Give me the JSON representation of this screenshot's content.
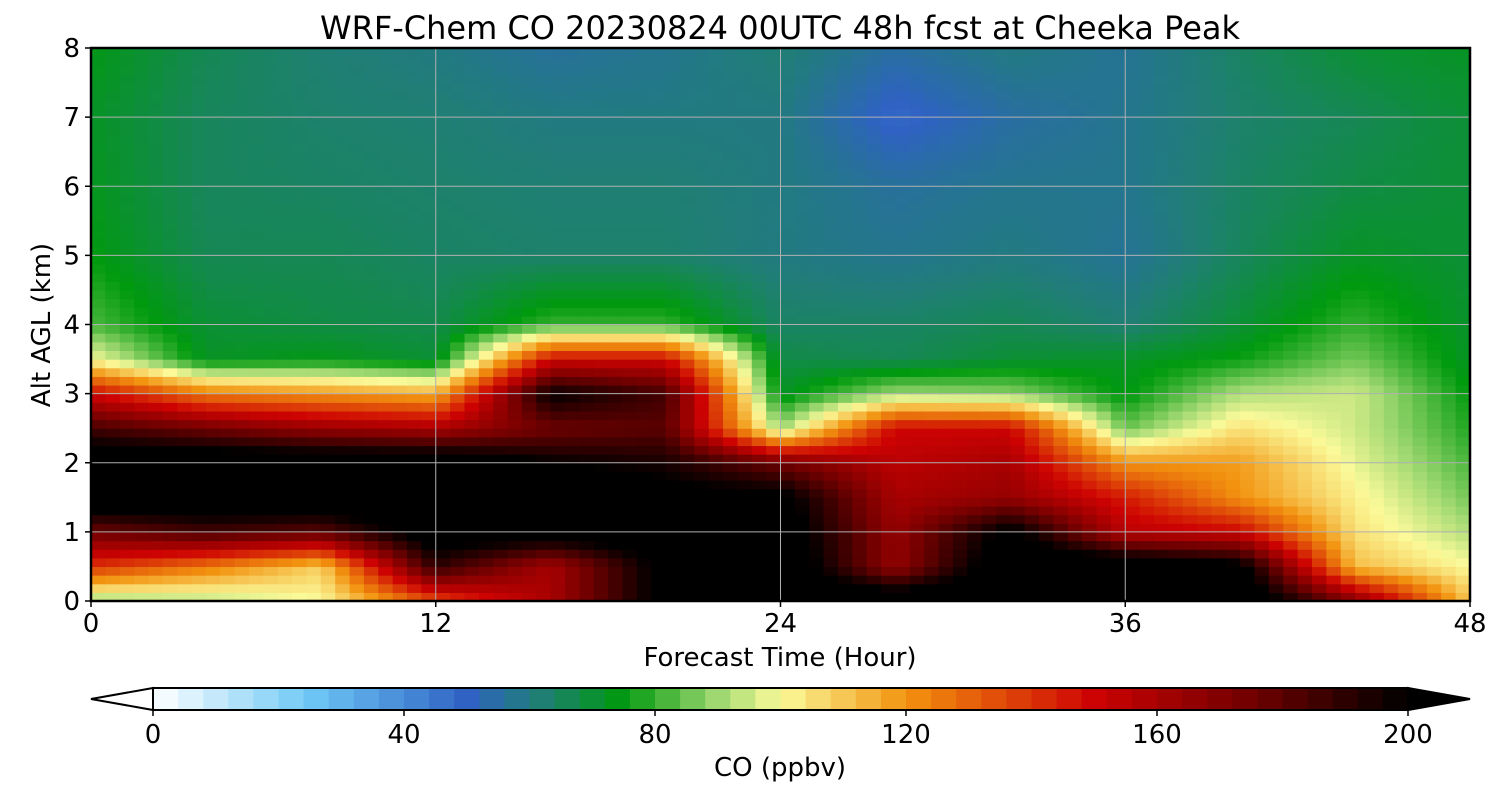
{
  "chart_data": {
    "type": "heatmap",
    "title": "WRF-Chem CO  20230824 00UTC 48h fcst at Cheeka Peak",
    "xlabel": "Forecast Time (Hour)",
    "ylabel": "Alt AGL (km)",
    "xlim": [
      0,
      48
    ],
    "ylim": [
      0,
      8
    ],
    "x_ticks": [
      0,
      12,
      24,
      36,
      48
    ],
    "y_ticks": [
      0,
      1,
      2,
      3,
      4,
      5,
      6,
      7,
      8
    ],
    "grid": true,
    "x": [
      0,
      4,
      8,
      12,
      16,
      20,
      24,
      28,
      32,
      36,
      40,
      44,
      48
    ],
    "y": [
      0,
      0.5,
      1,
      1.5,
      2,
      2.5,
      3,
      3.5,
      4,
      5,
      6,
      7,
      8
    ],
    "values": [
      [
        88,
        92,
        100,
        135,
        160,
        205,
        215,
        215,
        215,
        215,
        215,
        170,
        110
      ],
      [
        140,
        125,
        108,
        190,
        160,
        205,
        215,
        165,
        215,
        215,
        205,
        112,
        100
      ],
      [
        175,
        185,
        180,
        210,
        210,
        210,
        210,
        165,
        205,
        155,
        150,
        105,
        92
      ],
      [
        215,
        215,
        215,
        215,
        215,
        205,
        205,
        160,
        165,
        145,
        120,
        102,
        86
      ],
      [
        215,
        215,
        215,
        215,
        200,
        195,
        175,
        155,
        160,
        120,
        118,
        98,
        82
      ],
      [
        185,
        175,
        165,
        160,
        175,
        180,
        90,
        150,
        150,
        85,
        105,
        95,
        78
      ],
      [
        150,
        125,
        120,
        115,
        200,
        185,
        72,
        90,
        88,
        74,
        92,
        95,
        75
      ],
      [
        100,
        72,
        74,
        70,
        150,
        150,
        68,
        66,
        70,
        72,
        76,
        86,
        72
      ],
      [
        82,
        70,
        68,
        67,
        80,
        80,
        64,
        64,
        66,
        62,
        70,
        80,
        71
      ],
      [
        75,
        66,
        66,
        64,
        63,
        63,
        60,
        58,
        60,
        57,
        65,
        72,
        70
      ],
      [
        73,
        65,
        64,
        63,
        62,
        62,
        60,
        56,
        58,
        58,
        64,
        68,
        70
      ],
      [
        72,
        65,
        63,
        62,
        60,
        60,
        60,
        48,
        55,
        58,
        63,
        66,
        70
      ],
      [
        74,
        66,
        62,
        60,
        56,
        58,
        62,
        55,
        60,
        57,
        64,
        70,
        72
      ]
    ],
    "colorbar": {
      "label": "CO  (ppbv)",
      "min": 0,
      "max": 200,
      "ticks": [
        0,
        40,
        80,
        120,
        160,
        200
      ],
      "extend": "both",
      "stops": [
        {
          "v": 0,
          "c": "#ffffff"
        },
        {
          "v": 25,
          "c": "#6ec8f5"
        },
        {
          "v": 50,
          "c": "#2f62c3"
        },
        {
          "v": 62,
          "c": "#1f7f73"
        },
        {
          "v": 75,
          "c": "#009a0e"
        },
        {
          "v": 90,
          "c": "#9fd871"
        },
        {
          "v": 100,
          "c": "#fbfa9a"
        },
        {
          "v": 120,
          "c": "#f2930f"
        },
        {
          "v": 150,
          "c": "#cd0202"
        },
        {
          "v": 175,
          "c": "#700000"
        },
        {
          "v": 200,
          "c": "#000000"
        }
      ]
    }
  }
}
